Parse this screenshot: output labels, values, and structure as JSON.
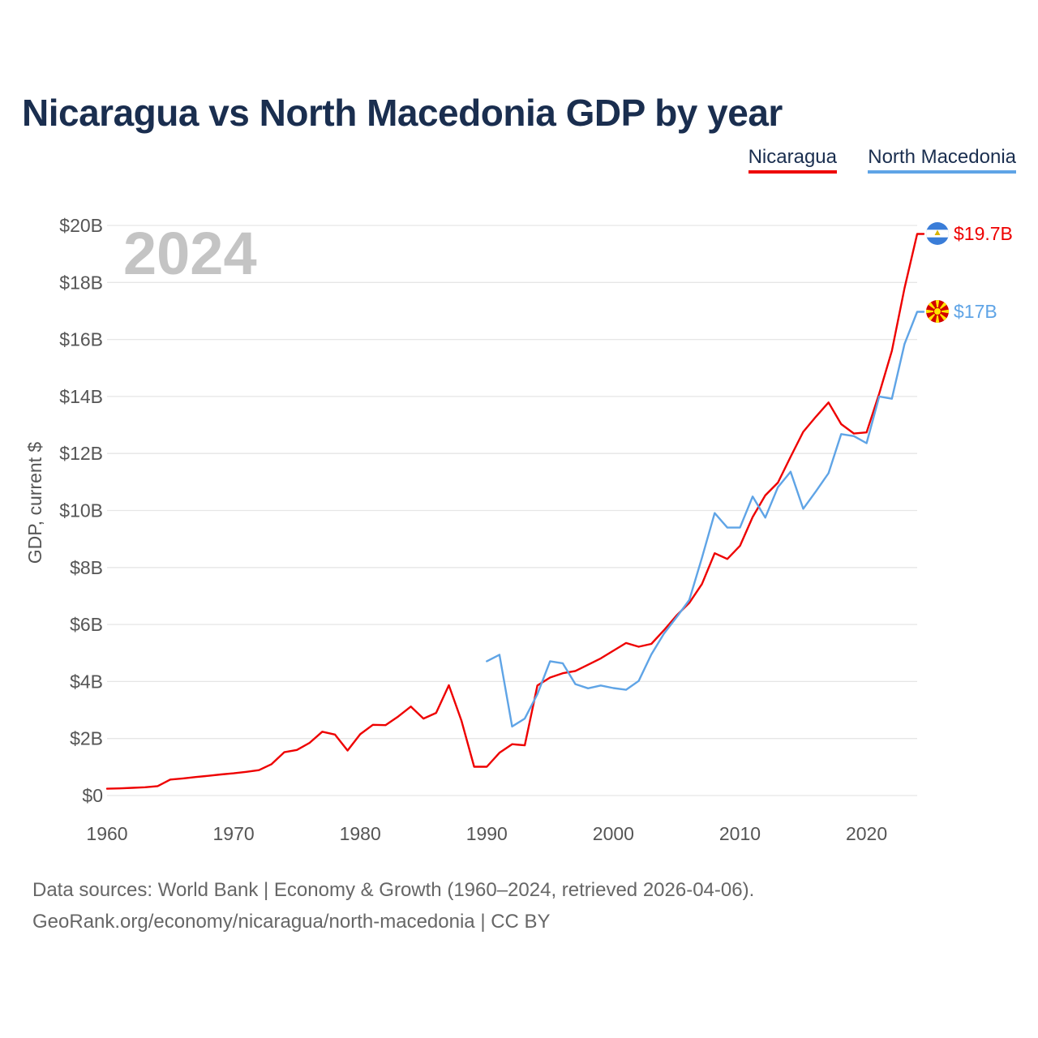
{
  "chart_data": {
    "type": "line",
    "title": "Nicaragua vs North Macedonia GDP by year",
    "year_label": "2024",
    "ylabel": "GDP, current $",
    "xlabel": "",
    "xlim": [
      1960,
      2024
    ],
    "ylim": [
      0,
      20
    ],
    "y_ticks": [
      0,
      2,
      4,
      6,
      8,
      10,
      12,
      14,
      16,
      18,
      20
    ],
    "y_tick_labels": [
      "$0",
      "$2B",
      "$4B",
      "$6B",
      "$8B",
      "$10B",
      "$12B",
      "$14B",
      "$16B",
      "$18B",
      "$20B"
    ],
    "x_ticks": [
      1960,
      1970,
      1980,
      1990,
      2000,
      2010,
      2020
    ],
    "x_tick_labels": [
      "1960",
      "1970",
      "1980",
      "1990",
      "2000",
      "2010",
      "2020"
    ],
    "grid": true,
    "legend_position": "top-right",
    "series": [
      {
        "name": "Nicaragua",
        "color": "#ee0000",
        "end_label": "$19.7B",
        "flag_icon": "nicaragua-flag-icon",
        "x": [
          1960,
          1961,
          1962,
          1963,
          1964,
          1965,
          1966,
          1967,
          1968,
          1969,
          1970,
          1971,
          1972,
          1973,
          1974,
          1975,
          1976,
          1977,
          1978,
          1979,
          1980,
          1981,
          1982,
          1983,
          1984,
          1985,
          1986,
          1987,
          1988,
          1989,
          1990,
          1991,
          1992,
          1993,
          1994,
          1995,
          1996,
          1997,
          1998,
          1999,
          2000,
          2001,
          2002,
          2003,
          2004,
          2005,
          2006,
          2007,
          2008,
          2009,
          2010,
          2011,
          2012,
          2013,
          2014,
          2015,
          2016,
          2017,
          2018,
          2019,
          2020,
          2021,
          2022,
          2023,
          2024
        ],
        "values": [
          0.24,
          0.25,
          0.27,
          0.29,
          0.33,
          0.56,
          0.6,
          0.65,
          0.69,
          0.74,
          0.78,
          0.83,
          0.89,
          1.1,
          1.52,
          1.6,
          1.85,
          2.24,
          2.14,
          1.58,
          2.15,
          2.48,
          2.47,
          2.77,
          3.12,
          2.7,
          2.9,
          3.87,
          2.62,
          1.01,
          1.01,
          1.5,
          1.8,
          1.76,
          3.86,
          4.14,
          4.29,
          4.37,
          4.59,
          4.81,
          5.08,
          5.35,
          5.22,
          5.32,
          5.8,
          6.32,
          6.76,
          7.42,
          8.5,
          8.3,
          8.76,
          9.77,
          10.53,
          10.98,
          11.88,
          12.76,
          13.29,
          13.79,
          13.03,
          12.7,
          12.74,
          14.1,
          15.6,
          17.8,
          19.7
        ]
      },
      {
        "name": "North Macedonia",
        "color": "#5fa4e6",
        "end_label": "$17B",
        "flag_icon": "north-macedonia-flag-icon",
        "x": [
          1990,
          1991,
          1992,
          1993,
          1994,
          1995,
          1996,
          1997,
          1998,
          1999,
          2000,
          2001,
          2002,
          2003,
          2004,
          2005,
          2006,
          2007,
          2008,
          2009,
          2010,
          2011,
          2012,
          2013,
          2014,
          2015,
          2016,
          2017,
          2018,
          2019,
          2020,
          2021,
          2022,
          2023,
          2024
        ],
        "values": [
          4.71,
          4.94,
          2.42,
          2.7,
          3.56,
          4.71,
          4.64,
          3.91,
          3.76,
          3.86,
          3.77,
          3.71,
          4.02,
          4.95,
          5.68,
          6.26,
          6.86,
          8.34,
          9.91,
          9.4,
          9.4,
          10.49,
          9.75,
          10.82,
          11.36,
          10.06,
          10.67,
          11.31,
          12.68,
          12.61,
          12.36,
          14.0,
          13.92,
          15.84,
          16.97
        ]
      }
    ]
  },
  "footer": {
    "source": "Data sources: World Bank | Economy & Growth (1960–2024, retrieved 2026-04-06).",
    "link": "GeoRank.org/economy/nicaragua/north-macedonia | CC BY"
  }
}
